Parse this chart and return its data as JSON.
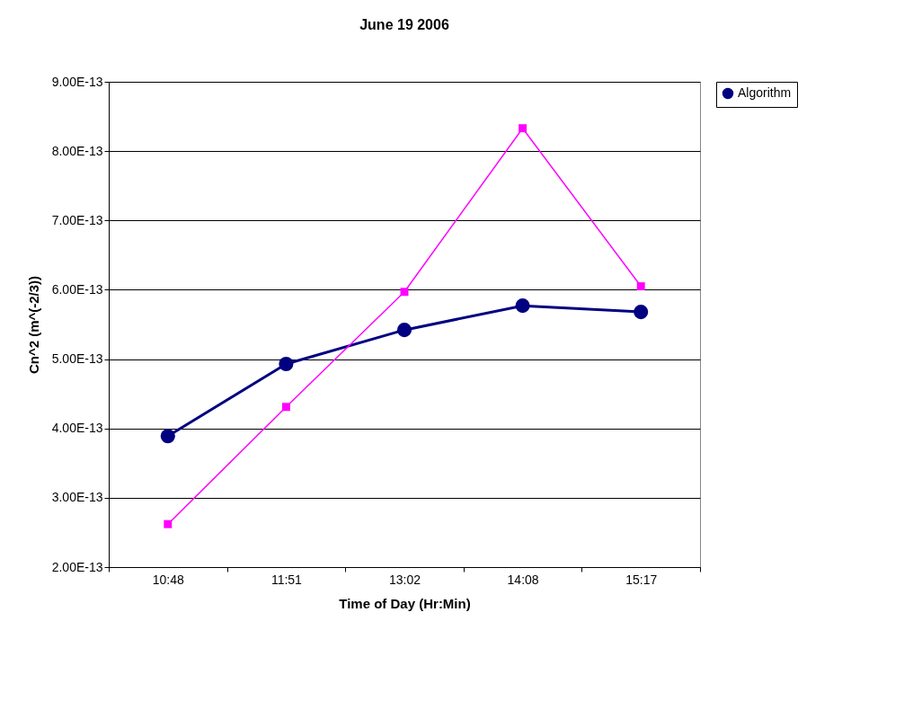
{
  "chart_data": {
    "type": "line",
    "title": "June 19 2006",
    "xlabel": "Time of Day (Hr:Min)",
    "ylabel": "Cn^2 (m^(-2/3))",
    "categories": [
      "10:48",
      "11:51",
      "13:02",
      "14:08",
      "15:17"
    ],
    "series": [
      {
        "name": "Algorithm",
        "color": "#000080",
        "marker": "circle",
        "values": [
          3.89e-13,
          4.93e-13,
          5.42e-13,
          5.77e-13,
          5.68e-13
        ]
      },
      {
        "color": "#ff00ff",
        "marker": "square",
        "values": [
          2.62e-13,
          4.31e-13,
          5.97e-13,
          8.33e-13,
          6.05e-13
        ]
      }
    ],
    "ylim": [
      2e-13,
      9e-13
    ],
    "yticks": [
      {
        "value": 2e-13,
        "label": "2.00E-13"
      },
      {
        "value": 3e-13,
        "label": "3.00E-13"
      },
      {
        "value": 4e-13,
        "label": "4.00E-13"
      },
      {
        "value": 5e-13,
        "label": "5.00E-13"
      },
      {
        "value": 6e-13,
        "label": "6.00E-13"
      },
      {
        "value": 7e-13,
        "label": "7.00E-13"
      },
      {
        "value": 8e-13,
        "label": "8.00E-13"
      },
      {
        "value": 9e-13,
        "label": "9.00E-13"
      }
    ],
    "grid": "y",
    "legend": "right",
    "line_style": "solid"
  }
}
